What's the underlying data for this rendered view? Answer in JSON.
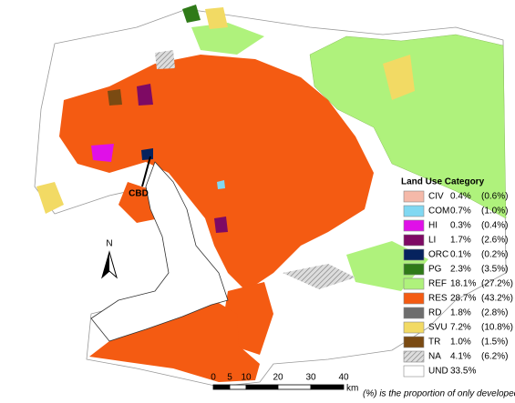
{
  "map": {
    "labels": {
      "cbd": "CBD",
      "north": "N"
    },
    "legend": {
      "title": "Land Use Category",
      "items": [
        {
          "code": "CIV",
          "share": "0.4%",
          "developed_share": "(0.6%)",
          "color": "#f5b9a9"
        },
        {
          "code": "COM",
          "share": "0.7%",
          "developed_share": "(1.0%)",
          "color": "#80d8f2"
        },
        {
          "code": "HI",
          "share": "0.3%",
          "developed_share": "(0.4%)",
          "color": "#e010e8"
        },
        {
          "code": "LI",
          "share": "1.7%",
          "developed_share": "(2.6%)",
          "color": "#7e0a64"
        },
        {
          "code": "ORC",
          "share": "0.1%",
          "developed_share": "(0.2%)",
          "color": "#06235e"
        },
        {
          "code": "PG",
          "share": "2.3%",
          "developed_share": "(3.5%)",
          "color": "#2f7a18"
        },
        {
          "code": "REF",
          "share": "18.1%",
          "developed_share": "(27.2%)",
          "color": "#aff27c"
        },
        {
          "code": "RES",
          "share": "28.7%",
          "developed_share": "(43.2%)",
          "color": "#f45b12"
        },
        {
          "code": "RD",
          "share": "1.8%",
          "developed_share": "(2.8%)",
          "color": "#6e6e6e"
        },
        {
          "code": "SVU",
          "share": "7.2%",
          "developed_share": "(10.8%)",
          "color": "#f2da64"
        },
        {
          "code": "TR",
          "share": "1.0%",
          "developed_share": "(1.5%)",
          "color": "#7a4a12"
        },
        {
          "code": "NA",
          "share": "4.1%",
          "developed_share": "(6.2%)",
          "color": "#bbbbbb",
          "hatch": true
        },
        {
          "code": "UND",
          "share": "33.5%",
          "color": "#ffffff"
        }
      ],
      "note": "(%) is the proportion of only developed areas"
    },
    "scale_bar": {
      "ticks": [
        "0",
        "5",
        "10",
        "20",
        "30",
        "40"
      ],
      "unit": "km"
    }
  }
}
